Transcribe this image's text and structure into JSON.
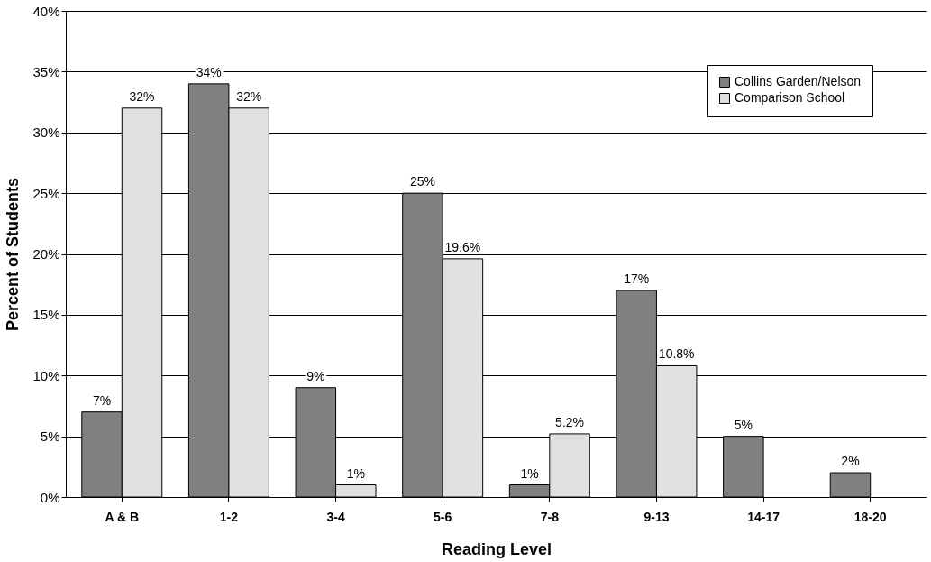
{
  "chart_data": {
    "type": "bar",
    "xlabel": "Reading Level",
    "ylabel": "Percent of Students",
    "categories": [
      "A & B",
      "1-2",
      "3-4",
      "5-6",
      "7-8",
      "9-13",
      "14-17",
      "18-20"
    ],
    "series": [
      {
        "name": "Collins Garden/Nelson",
        "color": "#808080",
        "values": [
          7,
          34,
          9,
          25,
          1,
          17,
          5,
          2
        ],
        "value_labels": [
          "7%",
          "34%",
          "9%",
          "25%",
          "1%",
          "17%",
          "5%",
          "2%"
        ]
      },
      {
        "name": "Comparison School",
        "color": "#e0e0e0",
        "values": [
          32,
          32,
          1,
          19.6,
          5.2,
          10.8,
          null,
          null
        ],
        "value_labels": [
          "32%",
          "32%",
          "1%",
          "19.6%",
          "5.2%",
          "10.8%",
          null,
          null
        ]
      }
    ],
    "ylim": [
      0,
      40
    ],
    "yticks": [
      {
        "value": 0,
        "label": "0%"
      },
      {
        "value": 5,
        "label": "5%"
      },
      {
        "value": 10,
        "label": "10%"
      },
      {
        "value": 15,
        "label": "15%"
      },
      {
        "value": 20,
        "label": "20%"
      },
      {
        "value": 25,
        "label": "25%"
      },
      {
        "value": 30,
        "label": "30%"
      },
      {
        "value": 35,
        "label": "35%"
      },
      {
        "value": 40,
        "label": "40%"
      }
    ],
    "grid": "y",
    "legend": "top right"
  }
}
